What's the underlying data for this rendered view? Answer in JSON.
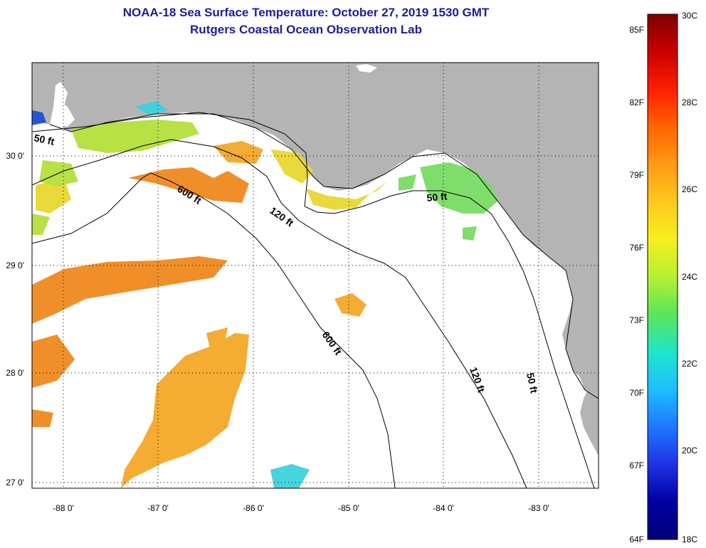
{
  "title": "NOAA-18 Sea Surface Temperature:  October 27, 2019 1530 GMT",
  "subtitle": "Rutgers Coastal Ocean Observation Lab",
  "map": {
    "lon_range": [
      -88.35,
      -82.45
    ],
    "lat_range": [
      26.97,
      30.85
    ],
    "lon_ticks": [
      "-88 0'",
      "-87 0'",
      "-86 0'",
      "-85 0'",
      "-84 0'",
      "-83 0'"
    ],
    "lat_ticks": [
      "30 0'",
      "29 0'",
      "28 0'",
      "27 0'"
    ],
    "contour_labels": [
      "50 ft",
      "600 ft",
      "120 ft",
      "50 ft",
      "600 ft",
      "120 ft",
      "50 ft"
    ],
    "colors": {
      "land": "#b4b4b4",
      "no_data": "#ffffff",
      "warm_orange": "#f08a1e",
      "mid_orange": "#f4a828",
      "yellow": "#e8d830",
      "yellow_green": "#b4e03c",
      "green": "#78dc64",
      "cyan": "#3cd2dc",
      "blue": "#1e50d2"
    }
  },
  "colorbar": {
    "celsius_labels": [
      "30C",
      "28C",
      "26C",
      "24C",
      "22C",
      "20C",
      "18C"
    ],
    "fahrenheit_labels": [
      "85F",
      "82F",
      "79F",
      "76F",
      "73F",
      "70F",
      "67F",
      "64F"
    ],
    "gradient": [
      "#800000",
      "#c80000",
      "#ff1e00",
      "#ff6400",
      "#ff9a14",
      "#ffc81e",
      "#f5f01e",
      "#b4f032",
      "#5ae65a",
      "#1ee6c8",
      "#1ebeff",
      "#1e78ff",
      "#1e32e6",
      "#0000a0",
      "#000078"
    ]
  }
}
